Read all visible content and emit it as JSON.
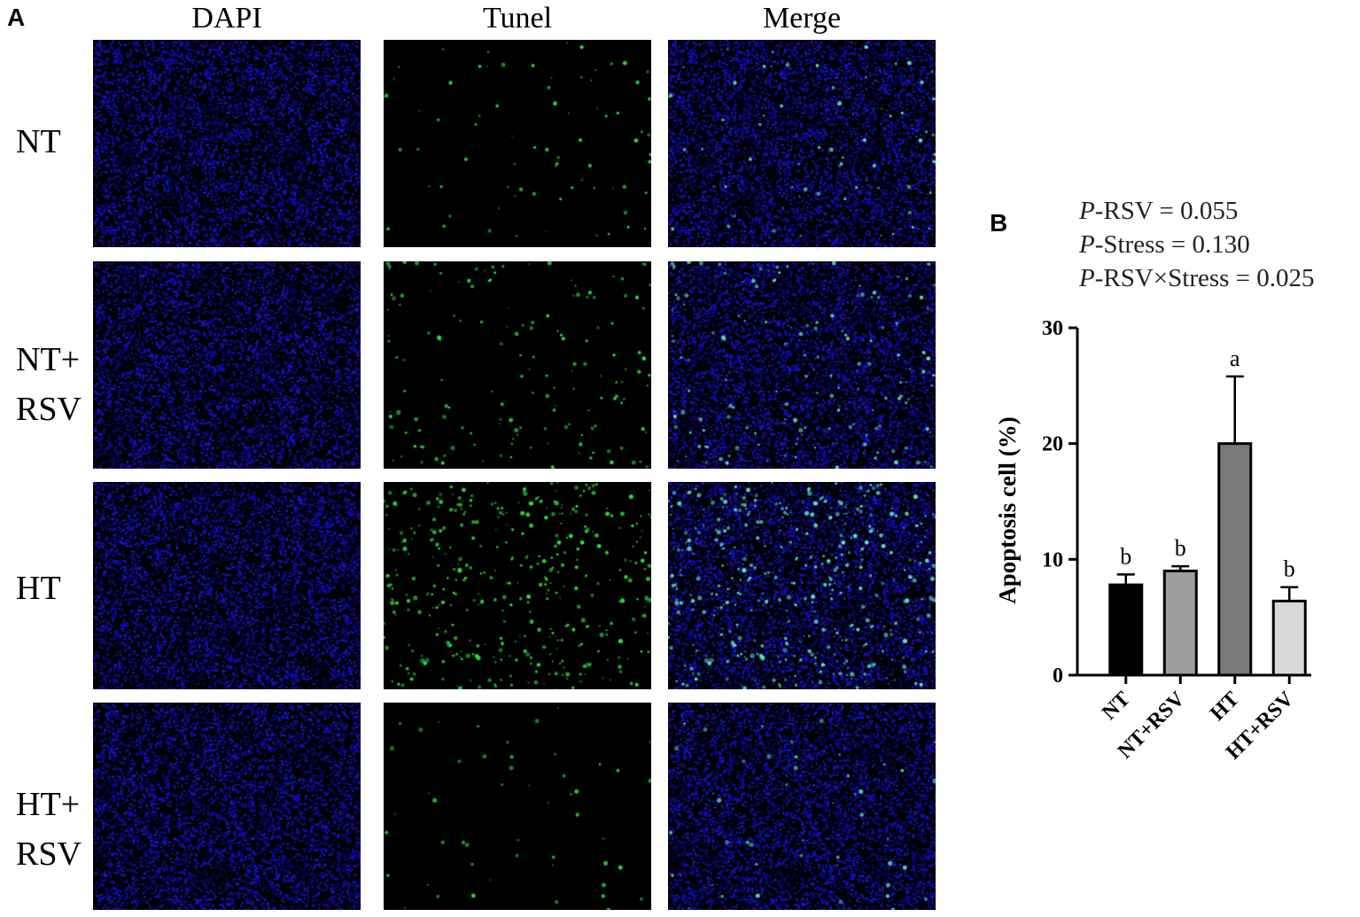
{
  "panel_a": {
    "letter": "A",
    "columns": [
      "DAPI",
      "Tunel",
      "Merge"
    ],
    "rows": [
      {
        "label_lines": [
          "NT"
        ],
        "green_density": 0.15
      },
      {
        "label_lines": [
          "NT+",
          "RSV"
        ],
        "green_density": 0.35
      },
      {
        "label_lines": [
          "HT"
        ],
        "green_density": 1.0
      },
      {
        "label_lines": [
          "HT+",
          "RSV"
        ],
        "green_density": 0.08
      }
    ],
    "colors": {
      "nuclei_blue": "#1a1acc",
      "tunel_green": "#33ff44",
      "background": "#000000"
    }
  },
  "panel_b": {
    "letter": "B",
    "stats": [
      {
        "p": "P",
        "text": "-RSV = 0.055"
      },
      {
        "p": "P",
        "text": "-Stress = 0.130"
      },
      {
        "p": "P",
        "text": "-RSV×Stress = 0.025"
      }
    ]
  },
  "chart_data": {
    "type": "bar",
    "categories": [
      "NT",
      "NT+RSV",
      "HT",
      "HT+RSV"
    ],
    "values": [
      7.8,
      9.0,
      20.0,
      6.4
    ],
    "errors": [
      0.9,
      0.4,
      5.8,
      1.2
    ],
    "significance": [
      "b",
      "b",
      "a",
      "b"
    ],
    "colors": [
      "#000000",
      "#9e9e9e",
      "#7a7a7a",
      "#d9d9d9"
    ],
    "ylabel": "Apoptosis cell (%)",
    "ylim": [
      0,
      30
    ],
    "yticks": [
      0,
      10,
      20,
      30
    ],
    "grid": false
  }
}
